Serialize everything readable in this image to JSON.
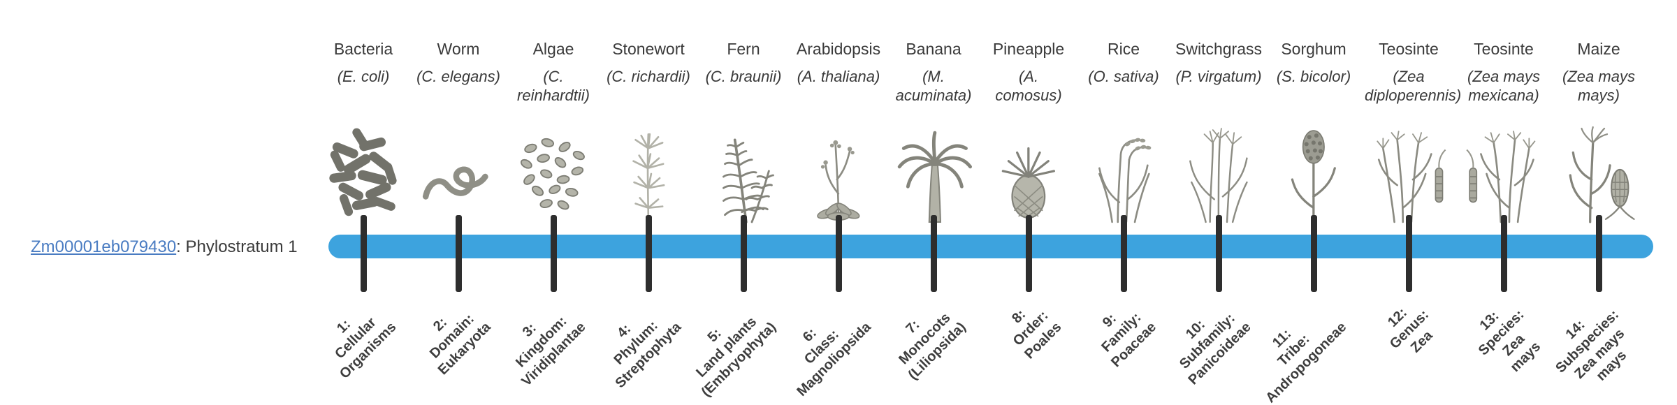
{
  "gene": {
    "id": "Zm00001eb079430",
    "suffix": ": Phylostratum 1",
    "link_color": "#4a7cc2"
  },
  "timeline": {
    "bar_color": "#3da3de",
    "tick_color": "#2e2e2e"
  },
  "organisms": [
    {
      "name": "Bacteria",
      "sci": "(E. coli)",
      "icon": "bacteria-icon",
      "stratum": "1:\nCellular\nOrganisms"
    },
    {
      "name": "Worm",
      "sci": "(C. elegans)",
      "icon": "worm-icon",
      "stratum": "2:\nDomain:\nEukaryota"
    },
    {
      "name": "Algae",
      "sci": "(C. reinhardtii)",
      "icon": "algae-icon",
      "stratum": "3:\nKingdom:\nViridiplantae"
    },
    {
      "name": "Stonewort",
      "sci": "(C. richardii)",
      "icon": "stonewort-icon",
      "stratum": "4:\nPhylum:\nStreptophyta"
    },
    {
      "name": "Fern",
      "sci": "(C. braunii)",
      "icon": "fern-icon",
      "stratum": "5:\nLand plants\n(Embryophyta)"
    },
    {
      "name": "Arabidopsis",
      "sci": "(A. thaliana)",
      "icon": "arabidopsis-icon",
      "stratum": "6:\nClass:\nMagnoliopsida"
    },
    {
      "name": "Banana",
      "sci": "(M. acuminata)",
      "icon": "banana-icon",
      "stratum": "7:\nMonocots\n(Liliopsida)"
    },
    {
      "name": "Pineapple",
      "sci": "(A. comosus)",
      "icon": "pineapple-icon",
      "stratum": "8:\nOrder:\nPoales"
    },
    {
      "name": "Rice",
      "sci": "(O. sativa)",
      "icon": "rice-icon",
      "stratum": "9:\nFamily:\nPoaceae"
    },
    {
      "name": "Switchgrass",
      "sci": "(P. virgatum)",
      "icon": "switchgrass-icon",
      "stratum": "10:\nSubfamily:\nPanicoideae"
    },
    {
      "name": "Sorghum",
      "sci": "(S. bicolor)",
      "icon": "sorghum-icon",
      "stratum": "11:\nTribe:\nAndropogoneae"
    },
    {
      "name": "Teosinte",
      "sci": "(Zea diploperennis)",
      "icon": "teosinte-diploperennis-icon",
      "stratum": "12:\nGenus:\nZea"
    },
    {
      "name": "Teosinte",
      "sci": "(Zea mays mexicana)",
      "icon": "teosinte-mexicana-icon",
      "stratum": "13:\nSpecies:\nZea\nmays"
    },
    {
      "name": "Maize",
      "sci": "(Zea mays mays)",
      "icon": "maize-icon",
      "stratum": "14:\nSubspecies:\nZea mays\nmays"
    }
  ]
}
